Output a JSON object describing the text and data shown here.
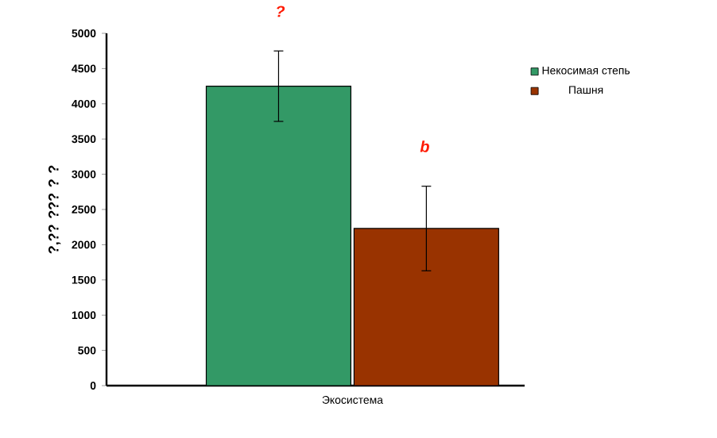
{
  "chart_data": {
    "type": "bar",
    "ylabel": "?,?? ??? ? ?",
    "categories": [
      "Экосистема"
    ],
    "series": [
      {
        "name": "Некосимая степь",
        "color": "#339966",
        "values": [
          4250
        ],
        "errors": [
          500
        ]
      },
      {
        "name": "Пашня",
        "color": "#993300",
        "values": [
          2230
        ],
        "errors": [
          600
        ]
      }
    ],
    "annotations": [
      "?",
      "b"
    ],
    "ylim": [
      0,
      5000
    ],
    "yticks": [
      0,
      500,
      1000,
      1500,
      2000,
      2500,
      3000,
      3500,
      4000,
      4500,
      5000
    ],
    "grid": false,
    "legend": "right"
  }
}
